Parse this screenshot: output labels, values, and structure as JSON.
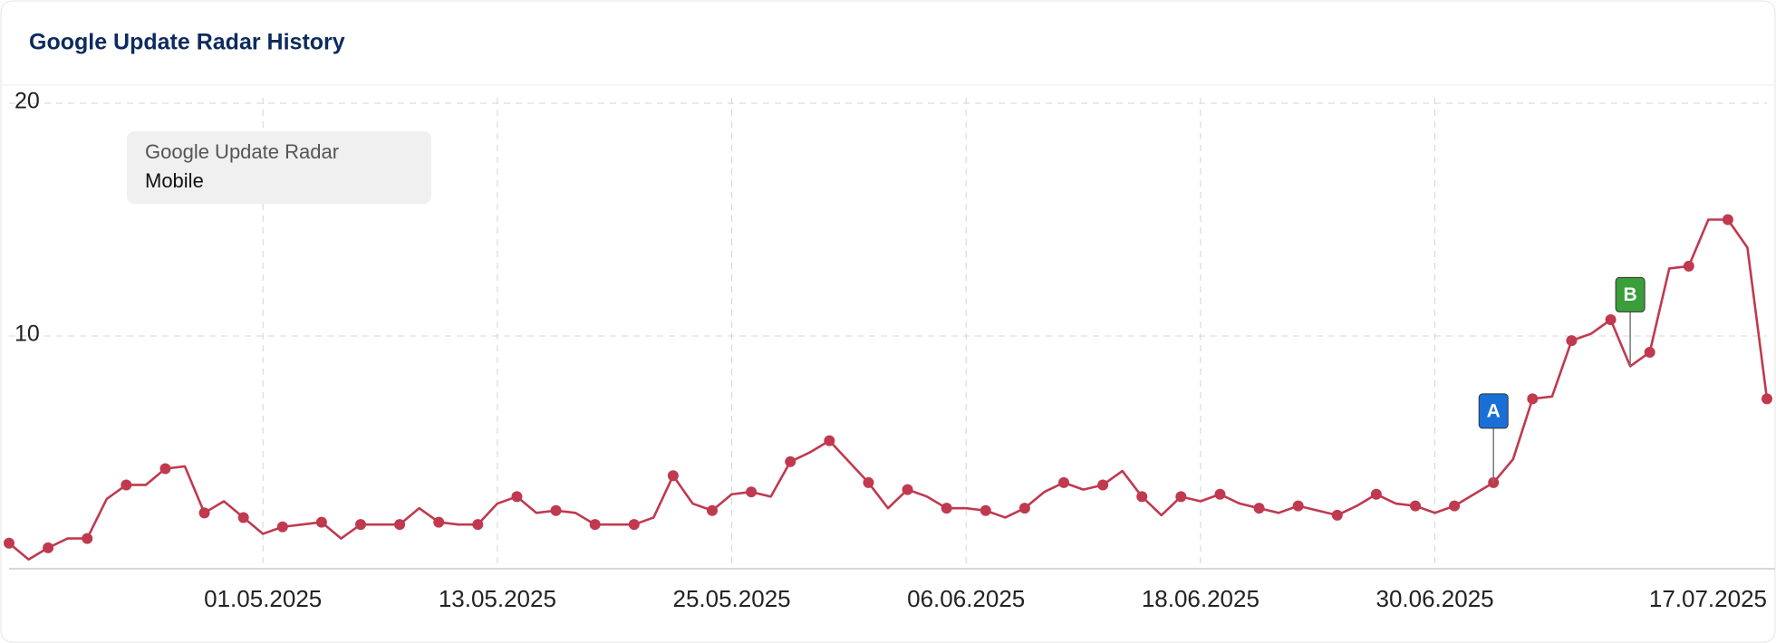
{
  "chart_data": {
    "type": "line",
    "title": "Google Update Radar History",
    "legend_title": "Google Update Radar",
    "x": [
      "18.04.2025",
      "19.04.2025",
      "20.04.2025",
      "21.04.2025",
      "22.04.2025",
      "23.04.2025",
      "24.04.2025",
      "25.04.2025",
      "26.04.2025",
      "27.04.2025",
      "28.04.2025",
      "29.04.2025",
      "30.04.2025",
      "01.05.2025",
      "02.05.2025",
      "03.05.2025",
      "04.05.2025",
      "05.05.2025",
      "06.05.2025",
      "07.05.2025",
      "08.05.2025",
      "09.05.2025",
      "10.05.2025",
      "11.05.2025",
      "12.05.2025",
      "13.05.2025",
      "14.05.2025",
      "15.05.2025",
      "16.05.2025",
      "17.05.2025",
      "18.05.2025",
      "19.05.2025",
      "20.05.2025",
      "21.05.2025",
      "22.05.2025",
      "23.05.2025",
      "24.05.2025",
      "25.05.2025",
      "26.05.2025",
      "27.05.2025",
      "28.05.2025",
      "29.05.2025",
      "30.05.2025",
      "31.05.2025",
      "01.06.2025",
      "02.06.2025",
      "03.06.2025",
      "04.06.2025",
      "05.06.2025",
      "06.06.2025",
      "07.06.2025",
      "08.06.2025",
      "09.06.2025",
      "10.06.2025",
      "11.06.2025",
      "12.06.2025",
      "13.06.2025",
      "14.06.2025",
      "15.06.2025",
      "16.06.2025",
      "17.06.2025",
      "18.06.2025",
      "19.06.2025",
      "20.06.2025",
      "21.06.2025",
      "22.06.2025",
      "23.06.2025",
      "24.06.2025",
      "25.06.2025",
      "26.06.2025",
      "27.06.2025",
      "28.06.2025",
      "29.06.2025",
      "30.06.2025",
      "01.07.2025",
      "02.07.2025",
      "03.07.2025",
      "04.07.2025",
      "05.07.2025",
      "06.07.2025",
      "07.07.2025",
      "08.07.2025",
      "09.07.2025",
      "10.07.2025",
      "11.07.2025",
      "12.07.2025",
      "13.07.2025",
      "14.07.2025",
      "15.07.2025",
      "16.07.2025",
      "17.07.2025"
    ],
    "series": [
      {
        "name": "Mobile",
        "color": "#c0394f",
        "values": [
          1.1,
          0.4,
          0.9,
          1.3,
          1.3,
          3.0,
          3.6,
          3.6,
          4.3,
          4.4,
          2.4,
          2.9,
          2.2,
          1.5,
          1.8,
          1.9,
          2.0,
          1.3,
          1.9,
          1.9,
          1.9,
          2.6,
          2.0,
          1.9,
          1.9,
          2.8,
          3.1,
          2.4,
          2.5,
          2.4,
          1.9,
          1.9,
          1.9,
          2.2,
          4.0,
          2.8,
          2.5,
          3.2,
          3.3,
          3.1,
          4.6,
          5.0,
          5.5,
          4.6,
          3.7,
          2.6,
          3.4,
          3.1,
          2.6,
          2.6,
          2.5,
          2.2,
          2.6,
          3.3,
          3.7,
          3.4,
          3.6,
          4.2,
          3.1,
          2.3,
          3.1,
          2.9,
          3.2,
          2.8,
          2.6,
          2.4,
          2.7,
          2.5,
          2.3,
          2.7,
          3.2,
          2.8,
          2.7,
          2.4,
          2.7,
          3.2,
          3.7,
          4.7,
          7.3,
          7.4,
          9.8,
          10.1,
          10.7,
          8.7,
          9.3,
          12.9,
          13.0,
          15.0,
          15.0,
          13.8,
          7.3
        ]
      }
    ],
    "xticks": [
      "01.05.2025",
      "13.05.2025",
      "25.05.2025",
      "06.06.2025",
      "18.06.2025",
      "30.06.2025",
      "17.07.2025"
    ],
    "ylim": [
      0,
      20
    ],
    "yticks": [
      10,
      20
    ],
    "grid": true,
    "markers": [
      {
        "label": "A",
        "x": "03.07.2025",
        "color": "#1a6fd6"
      },
      {
        "label": "B",
        "x": "10.07.2025",
        "color": "#3a9e3a"
      }
    ]
  }
}
